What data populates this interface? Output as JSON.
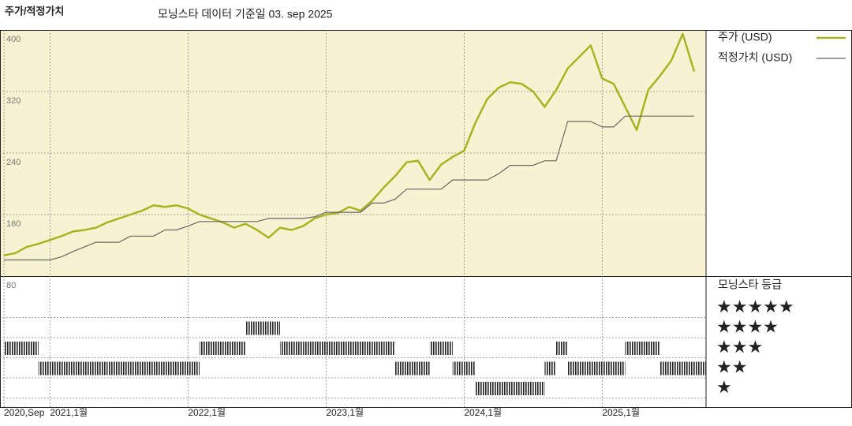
{
  "chart_data": {
    "type": "line",
    "title": "주가/적정가치",
    "subtitle": "모닝스타 데이터 기준일 03. sep 2025",
    "x": [
      "2020-09",
      "2020-10",
      "2020-11",
      "2020-12",
      "2021-01",
      "2021-02",
      "2021-03",
      "2021-04",
      "2021-05",
      "2021-06",
      "2021-07",
      "2021-08",
      "2021-09",
      "2021-10",
      "2021-11",
      "2021-12",
      "2022-01",
      "2022-02",
      "2022-03",
      "2022-04",
      "2022-05",
      "2022-06",
      "2022-07",
      "2022-08",
      "2022-09",
      "2022-10",
      "2022-11",
      "2022-12",
      "2023-01",
      "2023-02",
      "2023-03",
      "2023-04",
      "2023-05",
      "2023-06",
      "2023-07",
      "2023-08",
      "2023-09",
      "2023-10",
      "2023-11",
      "2023-12",
      "2024-01",
      "2024-02",
      "2024-03",
      "2024-04",
      "2024-05",
      "2024-06",
      "2024-07",
      "2024-08",
      "2024-09",
      "2024-10",
      "2024-11",
      "2024-12",
      "2025-01",
      "2025-02",
      "2025-03",
      "2025-04",
      "2025-05",
      "2025-06",
      "2025-07",
      "2025-08",
      "2025-09"
    ],
    "xlim": [
      "2020-09",
      "2025-09"
    ],
    "xticks": [
      {
        "value": "2020-09",
        "label": "2020,Sep"
      },
      {
        "value": "2021-01",
        "label": "2021,1월"
      },
      {
        "value": "2022-01",
        "label": "2022,1월"
      },
      {
        "value": "2023-01",
        "label": "2023,1월"
      },
      {
        "value": "2024-01",
        "label": "2024,1월"
      },
      {
        "value": "2025-01",
        "label": "2025,1월"
      }
    ],
    "ylim": [
      80,
      400
    ],
    "yticks": [
      80,
      160,
      240,
      320,
      400
    ],
    "grid": true,
    "series": [
      {
        "name": "주가 (USD)",
        "color": "#a9b322",
        "values": [
          107,
          110,
          118,
          122,
          127,
          132,
          138,
          140,
          143,
          150,
          155,
          160,
          165,
          172,
          170,
          172,
          168,
          160,
          155,
          150,
          143,
          148,
          140,
          130,
          143,
          140,
          145,
          155,
          160,
          162,
          170,
          165,
          178,
          195,
          210,
          228,
          230,
          205,
          225,
          235,
          243,
          280,
          310,
          325,
          332,
          330,
          320,
          300,
          322,
          350,
          365,
          380,
          337,
          330,
          300,
          270,
          322,
          340,
          360,
          395,
          346
        ]
      },
      {
        "name": "적정가치 (USD)",
        "color": "#666666",
        "values": [
          101,
          101,
          101,
          101,
          101,
          105,
          112,
          118,
          124,
          124,
          124,
          132,
          132,
          132,
          140,
          140,
          145,
          151,
          151,
          151,
          151,
          151,
          151,
          155,
          155,
          155,
          155,
          157,
          163,
          163,
          163,
          163,
          175,
          175,
          180,
          193,
          193,
          193,
          193,
          205,
          205,
          205,
          205,
          213,
          224,
          224,
          224,
          230,
          230,
          281,
          281,
          281,
          274,
          274,
          288,
          288,
          288,
          288,
          288,
          288,
          288
        ]
      }
    ],
    "rating": {
      "name": "모닝스타 등급",
      "color": "#222222",
      "values": [
        3,
        3,
        3,
        2,
        2,
        2,
        2,
        2,
        2,
        2,
        2,
        2,
        2,
        2,
        2,
        2,
        2,
        3,
        3,
        3,
        3,
        4,
        4,
        4,
        3,
        3,
        3,
        3,
        3,
        3,
        3,
        3,
        3,
        3,
        2,
        2,
        2,
        3,
        3,
        2,
        2,
        1,
        1,
        1,
        1,
        1,
        1,
        2,
        3,
        2,
        2,
        2,
        2,
        2,
        3,
        3,
        3,
        2,
        2,
        2,
        2
      ],
      "ticks": [
        {
          "value": 5,
          "label": "★★★★★"
        },
        {
          "value": 4,
          "label": "★★★★"
        },
        {
          "value": 3,
          "label": "★★★"
        },
        {
          "value": 2,
          "label": "★★"
        },
        {
          "value": 1,
          "label": "★"
        }
      ]
    }
  }
}
